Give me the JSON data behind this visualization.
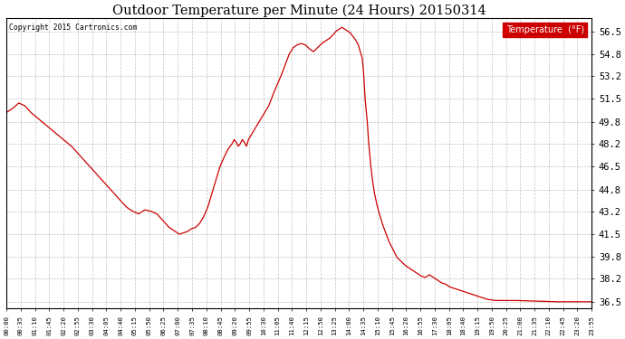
{
  "title": "Outdoor Temperature per Minute (24 Hours) 20150314",
  "copyright": "Copyright 2015 Cartronics.com",
  "legend_label": "Temperature  (°F)",
  "line_color": "#cc0000",
  "background_color": "#ffffff",
  "grid_color": "#999999",
  "ylim": [
    36.0,
    57.5
  ],
  "yticks": [
    36.5,
    38.2,
    39.8,
    41.5,
    43.2,
    44.8,
    46.5,
    48.2,
    49.8,
    51.5,
    53.2,
    54.8,
    56.5
  ],
  "xtick_labels": [
    "00:00",
    "00:35",
    "01:10",
    "01:45",
    "02:20",
    "02:55",
    "03:30",
    "04:05",
    "04:40",
    "05:15",
    "05:50",
    "06:25",
    "07:00",
    "07:35",
    "08:10",
    "08:45",
    "09:20",
    "09:55",
    "10:30",
    "11:05",
    "11:40",
    "12:15",
    "12:50",
    "13:25",
    "14:00",
    "14:35",
    "15:10",
    "15:45",
    "16:20",
    "16:55",
    "17:30",
    "18:05",
    "18:40",
    "19:15",
    "19:50",
    "20:25",
    "21:00",
    "21:35",
    "22:10",
    "22:45",
    "23:20",
    "23:55"
  ],
  "key_points": [
    [
      0,
      50.5
    ],
    [
      15,
      50.8
    ],
    [
      30,
      51.2
    ],
    [
      45,
      51.0
    ],
    [
      60,
      50.5
    ],
    [
      80,
      50.0
    ],
    [
      100,
      49.5
    ],
    [
      120,
      49.0
    ],
    [
      140,
      48.5
    ],
    [
      160,
      48.0
    ],
    [
      175,
      47.5
    ],
    [
      190,
      47.0
    ],
    [
      205,
      46.5
    ],
    [
      220,
      46.0
    ],
    [
      235,
      45.5
    ],
    [
      250,
      45.0
    ],
    [
      265,
      44.5
    ],
    [
      280,
      44.0
    ],
    [
      295,
      43.5
    ],
    [
      310,
      43.2
    ],
    [
      325,
      43.0
    ],
    [
      340,
      43.3
    ],
    [
      355,
      43.2
    ],
    [
      370,
      43.0
    ],
    [
      385,
      42.5
    ],
    [
      400,
      42.0
    ],
    [
      415,
      41.7
    ],
    [
      425,
      41.5
    ],
    [
      435,
      41.6
    ],
    [
      445,
      41.7
    ],
    [
      455,
      41.9
    ],
    [
      465,
      42.0
    ],
    [
      475,
      42.3
    ],
    [
      485,
      42.8
    ],
    [
      495,
      43.5
    ],
    [
      505,
      44.5
    ],
    [
      515,
      45.5
    ],
    [
      525,
      46.5
    ],
    [
      535,
      47.2
    ],
    [
      545,
      47.8
    ],
    [
      555,
      48.2
    ],
    [
      560,
      48.5
    ],
    [
      565,
      48.3
    ],
    [
      570,
      48.0
    ],
    [
      575,
      48.2
    ],
    [
      580,
      48.5
    ],
    [
      585,
      48.3
    ],
    [
      590,
      48.0
    ],
    [
      595,
      48.5
    ],
    [
      605,
      49.0
    ],
    [
      615,
      49.5
    ],
    [
      625,
      50.0
    ],
    [
      635,
      50.5
    ],
    [
      645,
      51.0
    ],
    [
      655,
      51.8
    ],
    [
      665,
      52.5
    ],
    [
      675,
      53.2
    ],
    [
      685,
      54.0
    ],
    [
      695,
      54.8
    ],
    [
      705,
      55.3
    ],
    [
      715,
      55.5
    ],
    [
      725,
      55.6
    ],
    [
      735,
      55.5
    ],
    [
      745,
      55.2
    ],
    [
      755,
      55.0
    ],
    [
      765,
      55.3
    ],
    [
      775,
      55.6
    ],
    [
      785,
      55.8
    ],
    [
      795,
      56.0
    ],
    [
      805,
      56.3
    ],
    [
      810,
      56.5
    ],
    [
      815,
      56.6
    ],
    [
      820,
      56.7
    ],
    [
      825,
      56.8
    ],
    [
      830,
      56.7
    ],
    [
      835,
      56.6
    ],
    [
      840,
      56.5
    ],
    [
      845,
      56.4
    ],
    [
      850,
      56.2
    ],
    [
      855,
      56.0
    ],
    [
      860,
      55.8
    ],
    [
      865,
      55.5
    ],
    [
      870,
      55.0
    ],
    [
      875,
      54.5
    ],
    [
      878,
      53.5
    ],
    [
      880,
      52.5
    ],
    [
      882,
      51.5
    ],
    [
      885,
      50.5
    ],
    [
      888,
      49.5
    ],
    [
      890,
      48.5
    ],
    [
      893,
      47.5
    ],
    [
      896,
      46.5
    ],
    [
      900,
      45.5
    ],
    [
      905,
      44.5
    ],
    [
      910,
      43.8
    ],
    [
      915,
      43.2
    ],
    [
      920,
      42.7
    ],
    [
      925,
      42.2
    ],
    [
      930,
      41.8
    ],
    [
      935,
      41.4
    ],
    [
      940,
      41.0
    ],
    [
      945,
      40.7
    ],
    [
      950,
      40.4
    ],
    [
      955,
      40.1
    ],
    [
      960,
      39.8
    ],
    [
      970,
      39.5
    ],
    [
      980,
      39.2
    ],
    [
      990,
      39.0
    ],
    [
      1000,
      38.8
    ],
    [
      1010,
      38.6
    ],
    [
      1020,
      38.4
    ],
    [
      1030,
      38.3
    ],
    [
      1040,
      38.5
    ],
    [
      1050,
      38.3
    ],
    [
      1060,
      38.1
    ],
    [
      1070,
      37.9
    ],
    [
      1080,
      37.8
    ],
    [
      1090,
      37.6
    ],
    [
      1100,
      37.5
    ],
    [
      1110,
      37.4
    ],
    [
      1120,
      37.3
    ],
    [
      1130,
      37.2
    ],
    [
      1140,
      37.1
    ],
    [
      1150,
      37.0
    ],
    [
      1160,
      36.9
    ],
    [
      1170,
      36.8
    ],
    [
      1180,
      36.7
    ],
    [
      1200,
      36.6
    ],
    [
      1250,
      36.6
    ],
    [
      1350,
      36.5
    ],
    [
      1439,
      36.5
    ]
  ]
}
